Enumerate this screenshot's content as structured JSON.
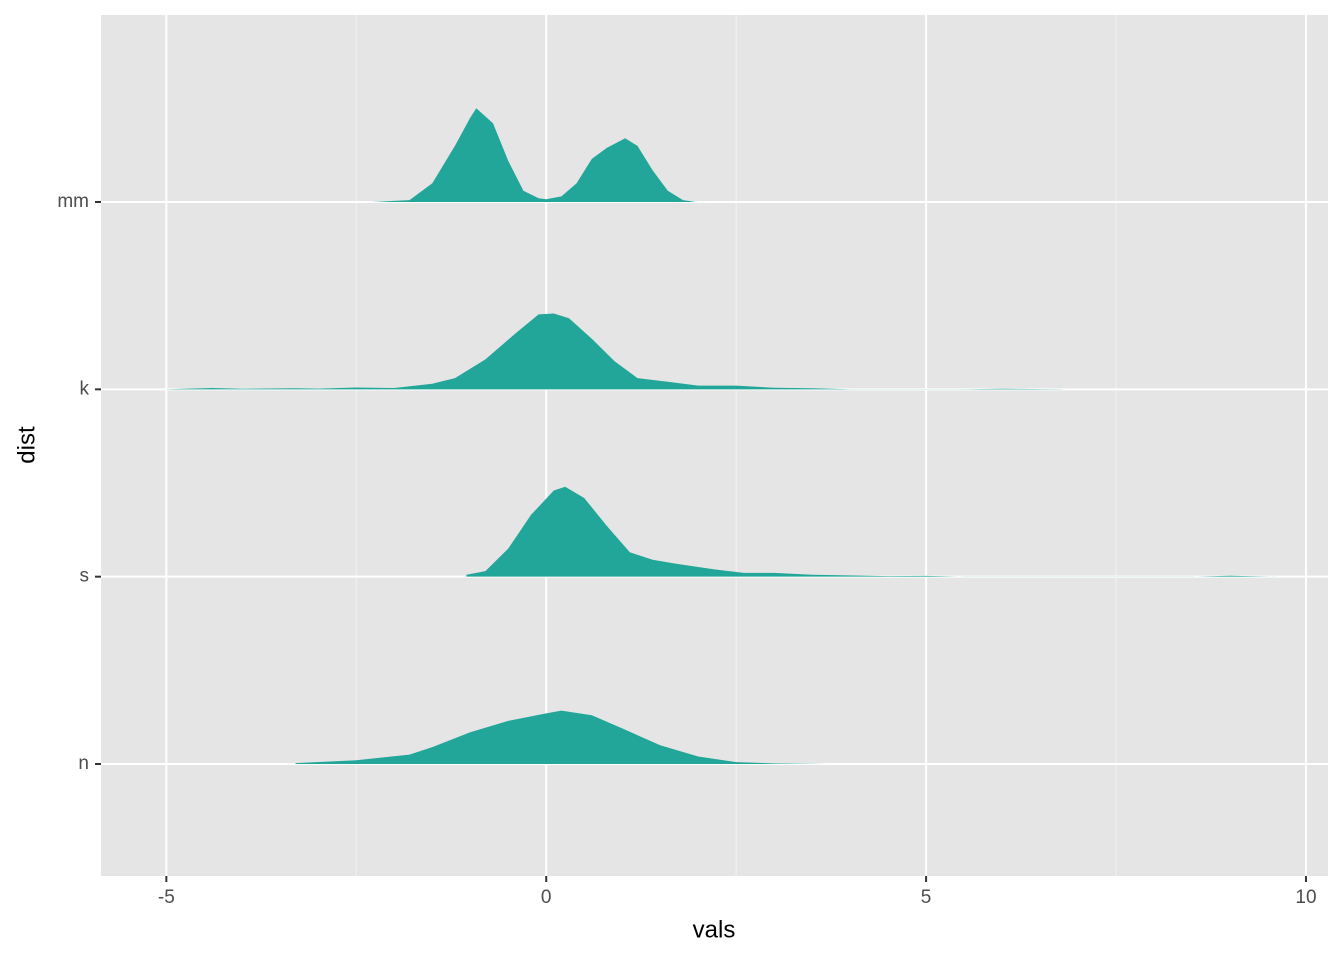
{
  "chart_data": {
    "type": "ridgeline",
    "xlabel": "vals",
    "ylabel": "dist",
    "categories": [
      "n",
      "s",
      "k",
      "mm"
    ],
    "color": "#22a699",
    "xlim": [
      -5.86,
      10.29
    ],
    "xticks": [
      -5,
      0,
      5,
      10
    ],
    "grid": true,
    "ridges": [
      {
        "x": [
          -3.3,
          -2.5,
          -1.8,
          -1.5,
          -1,
          -0.5,
          0,
          0.2,
          0.6,
          1,
          1.5,
          2,
          2.5,
          3,
          3.7
        ],
        "values": [
          0.005,
          0.02,
          0.05,
          0.09,
          0.17,
          0.23,
          0.27,
          0.285,
          0.26,
          0.19,
          0.1,
          0.04,
          0.01,
          0.003,
          0
        ]
      },
      {
        "x": [
          -1.05,
          -0.8,
          -0.5,
          -0.2,
          0.1,
          0.25,
          0.5,
          0.8,
          1.1,
          1.4,
          1.7,
          2.2,
          2.6,
          3,
          3.5,
          4.5,
          5,
          5.5,
          8.5,
          9,
          9.6
        ],
        "values": [
          0.01,
          0.03,
          0.15,
          0.33,
          0.46,
          0.48,
          0.42,
          0.27,
          0.13,
          0.09,
          0.07,
          0.04,
          0.02,
          0.02,
          0.01,
          0.003,
          0.004,
          0,
          0,
          0.005,
          0
        ]
      },
      {
        "x": [
          -5,
          -4.4,
          -4,
          -3.3,
          -3,
          -2.5,
          -2,
          -1.5,
          -1.2,
          -0.8,
          -0.4,
          -0.1,
          0.1,
          0.3,
          0.6,
          0.9,
          1.2,
          1.6,
          2,
          2.5,
          3,
          3.5,
          4,
          5.5,
          6,
          6.8
        ],
        "values": [
          0,
          0.007,
          0.003,
          0.006,
          0.004,
          0.01,
          0.007,
          0.03,
          0.06,
          0.16,
          0.3,
          0.4,
          0.405,
          0.38,
          0.27,
          0.15,
          0.06,
          0.04,
          0.02,
          0.02,
          0.008,
          0.006,
          0,
          0,
          0.003,
          0
        ]
      },
      {
        "x": [
          -2.3,
          -1.8,
          -1.5,
          -1.2,
          -1,
          -0.92,
          -0.7,
          -0.5,
          -0.3,
          -0.1,
          0,
          0.2,
          0.4,
          0.6,
          0.8,
          1.04,
          1.2,
          1.4,
          1.6,
          1.8,
          1.97
        ],
        "values": [
          0,
          0.01,
          0.1,
          0.3,
          0.45,
          0.5,
          0.42,
          0.22,
          0.06,
          0.02,
          0.015,
          0.03,
          0.1,
          0.23,
          0.29,
          0.34,
          0.3,
          0.17,
          0.06,
          0.01,
          0
        ]
      }
    ]
  }
}
